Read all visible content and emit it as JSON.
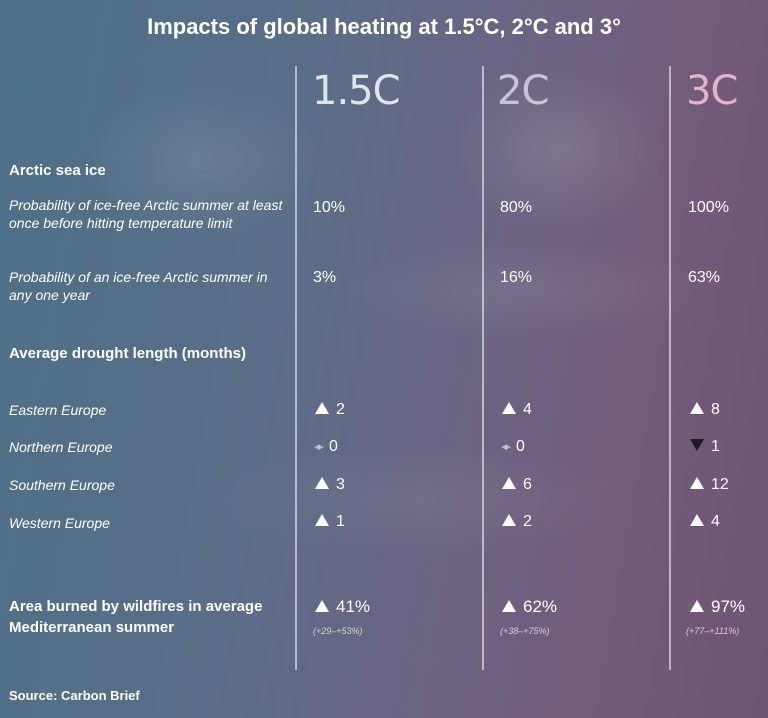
{
  "title": "Impacts of global heating at 1.5°C, 2°C and 3°",
  "columns": [
    {
      "label": "1.5C",
      "color": "#dfe4ea"
    },
    {
      "label": "2C",
      "color": "#cdbfd9"
    },
    {
      "label": "3C",
      "color": "#e3b3c6"
    }
  ],
  "sections": {
    "arctic": {
      "heading": "Arctic sea ice",
      "rows": [
        {
          "label": "Probability of ice-free Arctic summer at least once before hitting temperature limit",
          "values": [
            "10%",
            "80%",
            "100%"
          ]
        },
        {
          "label": "Probability of an ice-free Arctic summer in any one year",
          "values": [
            "3%",
            "16%",
            "63%"
          ]
        }
      ]
    },
    "drought": {
      "heading": "Average drought length (months)",
      "rows": [
        {
          "label": "Eastern Europe",
          "values": [
            {
              "dir": "up",
              "value": "2"
            },
            {
              "dir": "up",
              "value": "4"
            },
            {
              "dir": "up",
              "value": "8"
            }
          ]
        },
        {
          "label": "Northern Europe",
          "values": [
            {
              "dir": "none",
              "value": "0"
            },
            {
              "dir": "none",
              "value": "0"
            },
            {
              "dir": "down",
              "value": "1"
            }
          ]
        },
        {
          "label": "Southern Europe",
          "values": [
            {
              "dir": "up",
              "value": "3"
            },
            {
              "dir": "up",
              "value": "6"
            },
            {
              "dir": "up",
              "value": "12"
            }
          ]
        },
        {
          "label": "Western Europe",
          "values": [
            {
              "dir": "up",
              "value": "1"
            },
            {
              "dir": "up",
              "value": "2"
            },
            {
              "dir": "up",
              "value": "4"
            }
          ]
        }
      ]
    },
    "wildfire": {
      "heading": "Area burned by wildfires in average Mediterranean summer",
      "values": [
        {
          "dir": "up",
          "value": "41%",
          "range": "(+29–+53%)"
        },
        {
          "dir": "up",
          "value": "62%",
          "range": "(+38–+75%)"
        },
        {
          "dir": "up",
          "value": "97%",
          "range": "(+77–+111%)"
        }
      ]
    }
  },
  "source": "Source: Carbon Brief",
  "icons": {
    "up": "triangle-up-icon",
    "down": "triangle-down-icon",
    "none": "no-change-arrows-icon"
  }
}
